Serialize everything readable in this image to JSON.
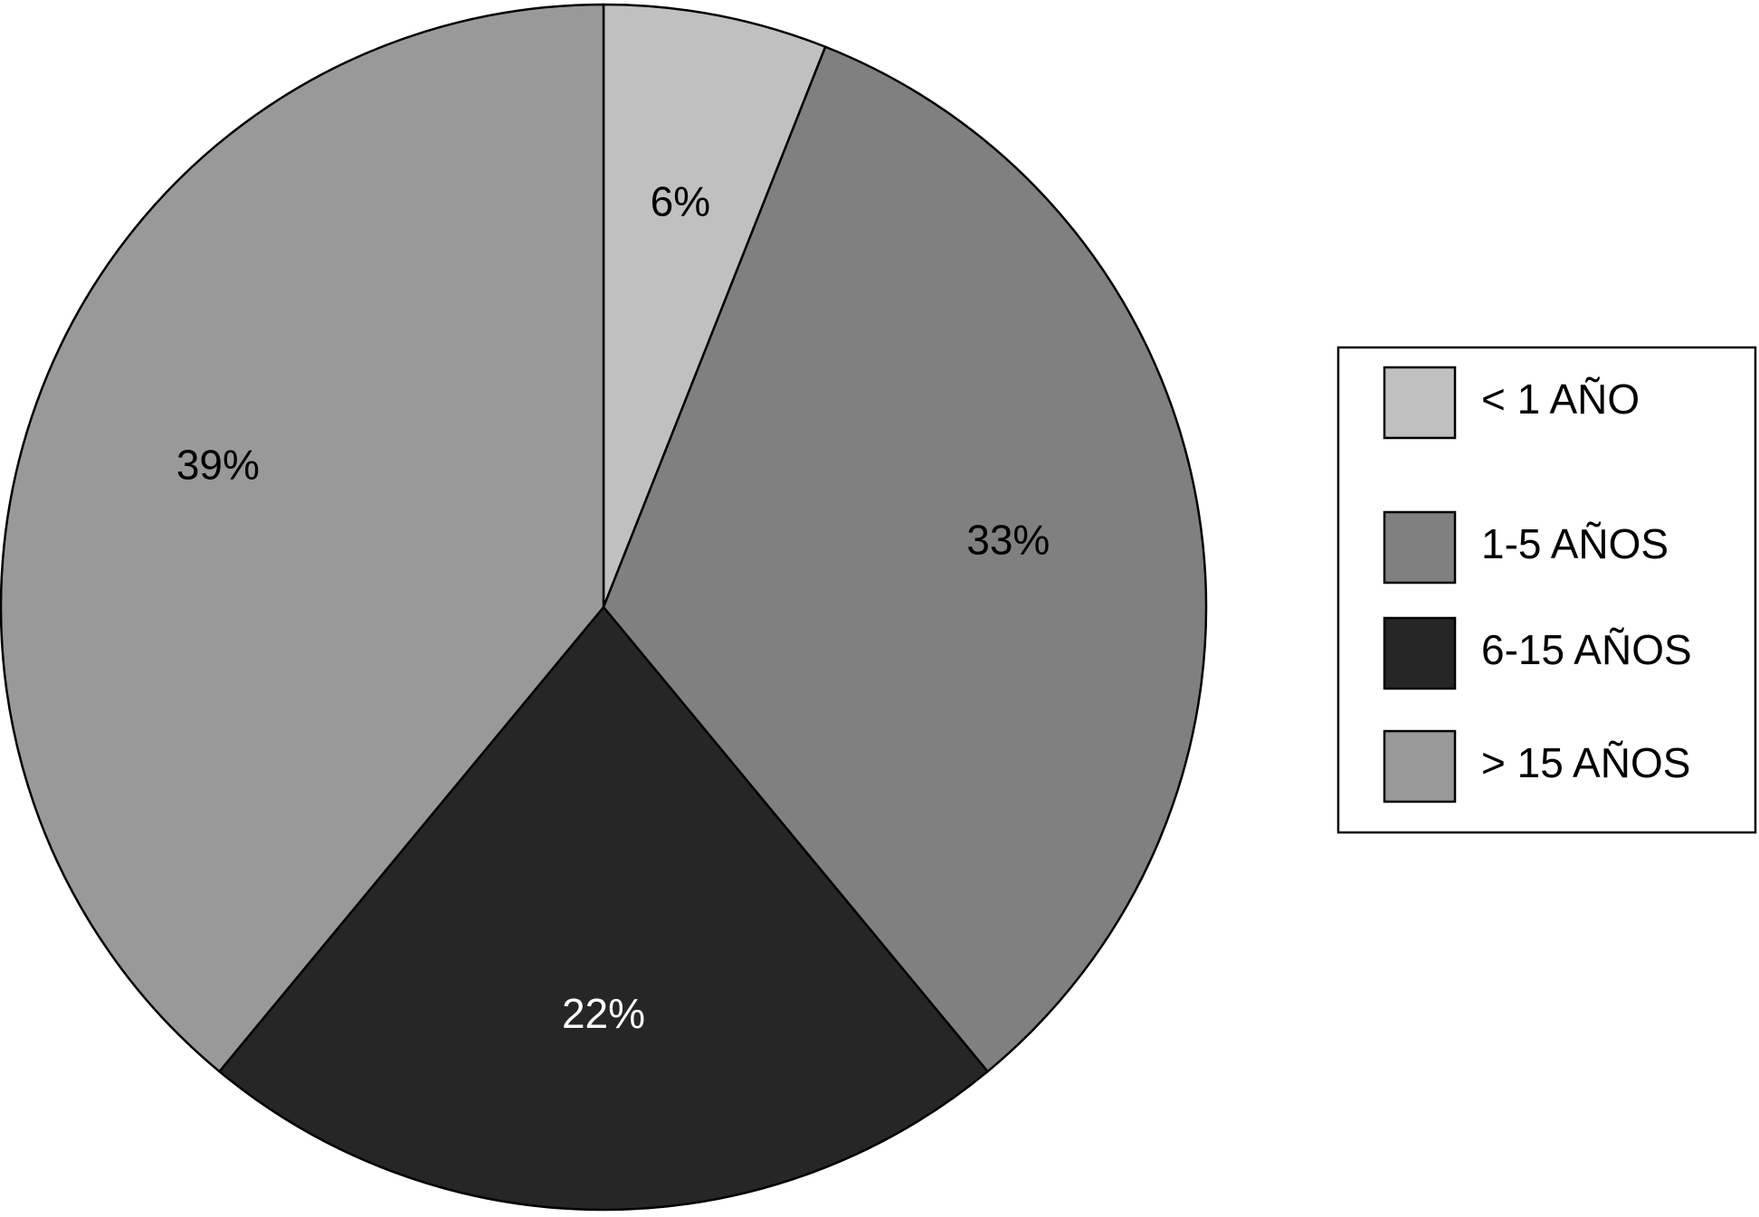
{
  "chart_data": {
    "type": "pie",
    "categories": [
      "< 1 AÑO",
      "1-5 AÑOS",
      "6-15 AÑOS",
      "> 15 AÑOS"
    ],
    "values": [
      6,
      33,
      22,
      39
    ],
    "value_labels": [
      "6%",
      "33%",
      "22%",
      "39%"
    ],
    "colors": [
      "#c0c0c0",
      "#808080",
      "#262626",
      "#999999"
    ],
    "legend": "right"
  }
}
